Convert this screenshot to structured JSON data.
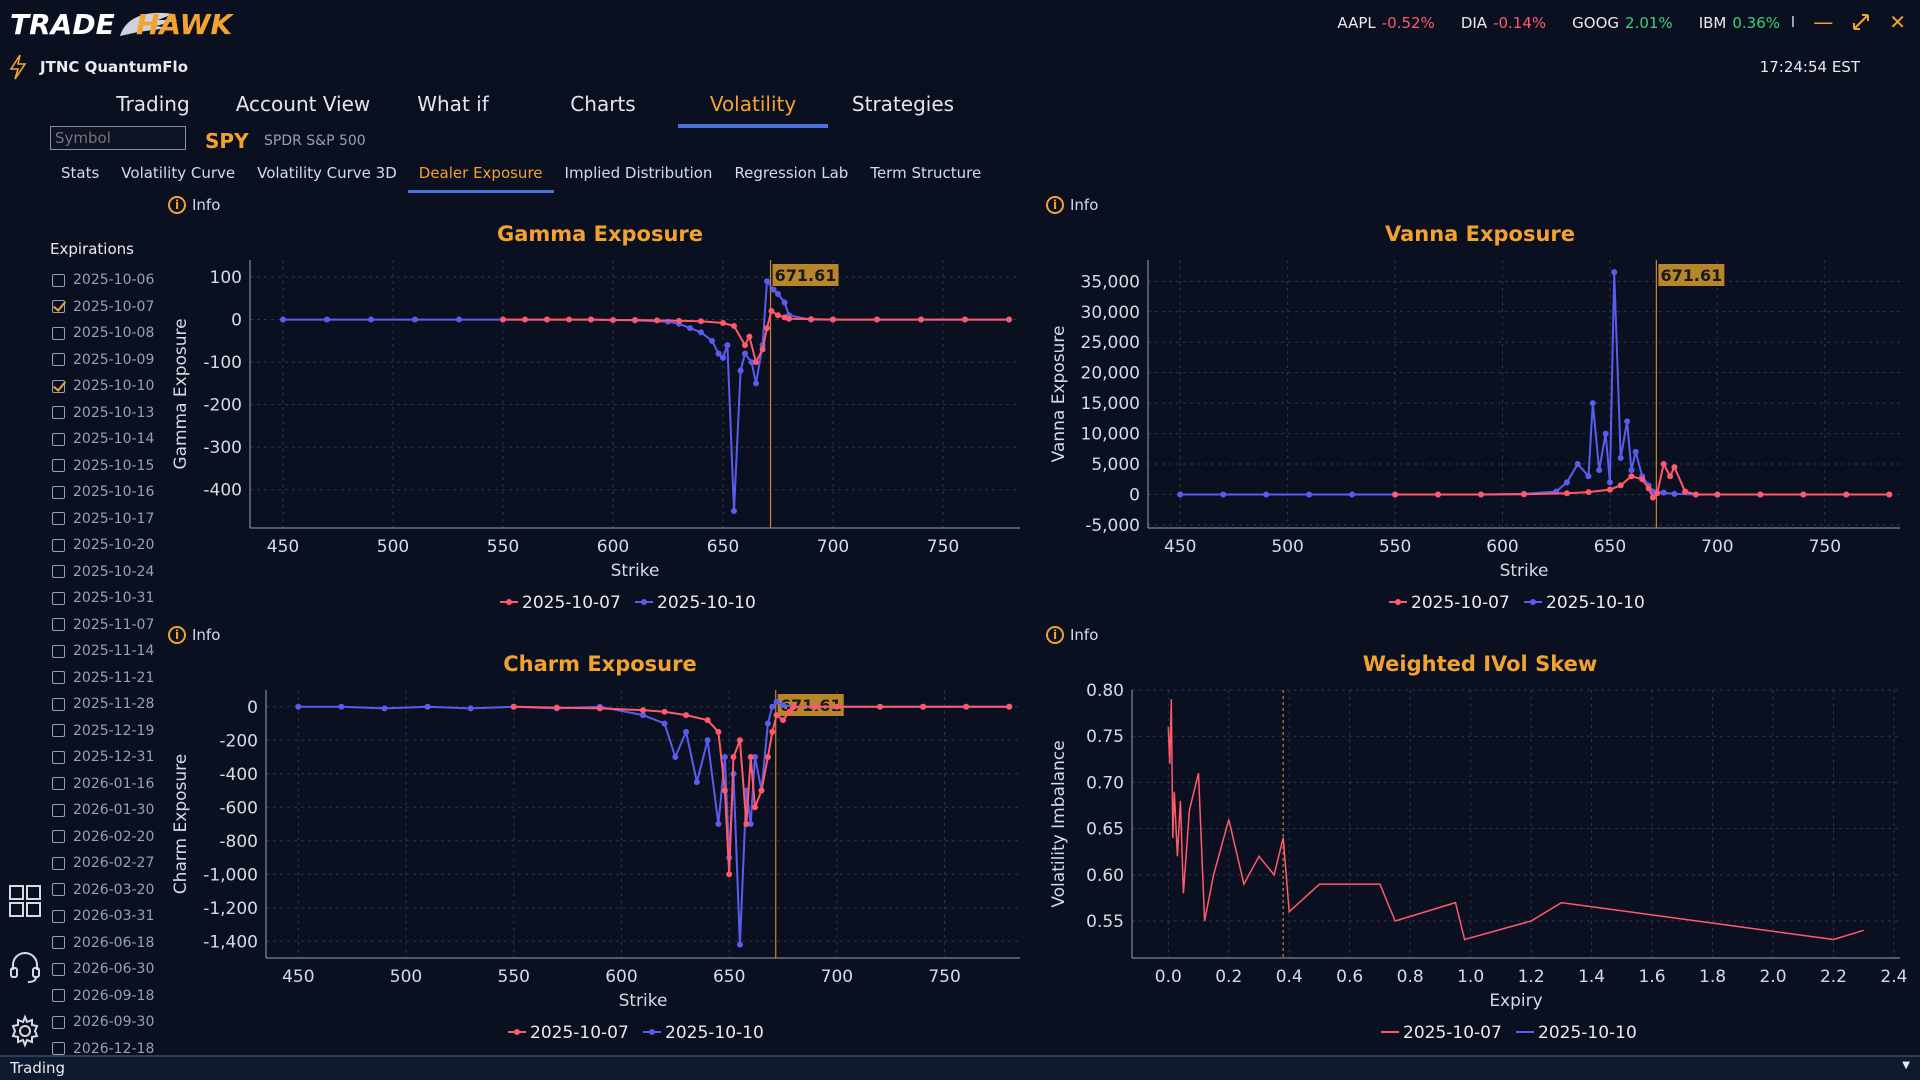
{
  "app": {
    "logo": "TRADEHAWK",
    "user": "JTNC QuantumFlo",
    "clock": "17:24:54 EST"
  },
  "tickers": [
    {
      "sym": "AAPL",
      "chg": "-0.52%",
      "dir": "neg"
    },
    {
      "sym": "DIA",
      "chg": "-0.14%",
      "dir": "neg"
    },
    {
      "sym": "GOOG",
      "chg": "2.01%",
      "dir": "pos"
    },
    {
      "sym": "IBM",
      "chg": "0.36%",
      "dir": "pos"
    }
  ],
  "window_sep": "I",
  "main_tabs": [
    "Trading",
    "Account View",
    "What if",
    "Charts",
    "Volatility",
    "Strategies"
  ],
  "main_tab_active": "Volatility",
  "symbol": {
    "placeholder": "Symbol",
    "ticker": "SPY",
    "name": "SPDR S&P 500"
  },
  "sub_tabs": [
    "Stats",
    "Volatility Curve",
    "Volatility Curve 3D",
    "Dealer Exposure",
    "Implied Distribution",
    "Regression Lab",
    "Term Structure"
  ],
  "sub_tab_active": "Dealer Exposure",
  "info_label": "Info",
  "expirations": {
    "label": "Expirations",
    "items": [
      {
        "date": "2025-10-06",
        "checked": false
      },
      {
        "date": "2025-10-07",
        "checked": true
      },
      {
        "date": "2025-10-08",
        "checked": false
      },
      {
        "date": "2025-10-09",
        "checked": false
      },
      {
        "date": "2025-10-10",
        "checked": true
      },
      {
        "date": "2025-10-13",
        "checked": false
      },
      {
        "date": "2025-10-14",
        "checked": false
      },
      {
        "date": "2025-10-15",
        "checked": false
      },
      {
        "date": "2025-10-16",
        "checked": false
      },
      {
        "date": "2025-10-17",
        "checked": false
      },
      {
        "date": "2025-10-20",
        "checked": false
      },
      {
        "date": "2025-10-24",
        "checked": false
      },
      {
        "date": "2025-10-31",
        "checked": false
      },
      {
        "date": "2025-11-07",
        "checked": false
      },
      {
        "date": "2025-11-14",
        "checked": false
      },
      {
        "date": "2025-11-21",
        "checked": false
      },
      {
        "date": "2025-11-28",
        "checked": false
      },
      {
        "date": "2025-12-19",
        "checked": false
      },
      {
        "date": "2025-12-31",
        "checked": false
      },
      {
        "date": "2026-01-16",
        "checked": false
      },
      {
        "date": "2026-01-30",
        "checked": false
      },
      {
        "date": "2026-02-20",
        "checked": false
      },
      {
        "date": "2026-02-27",
        "checked": false
      },
      {
        "date": "2026-03-20",
        "checked": false
      },
      {
        "date": "2026-03-31",
        "checked": false
      },
      {
        "date": "2026-06-18",
        "checked": false
      },
      {
        "date": "2026-06-30",
        "checked": false
      },
      {
        "date": "2026-09-18",
        "checked": false
      },
      {
        "date": "2026-09-30",
        "checked": false
      },
      {
        "date": "2026-12-18",
        "checked": false
      }
    ]
  },
  "colors": {
    "series_a": "#ff5a6a",
    "series_b": "#5a5cf0",
    "accent": "#f2a230",
    "spot_line": "#c8862a"
  },
  "status": "Trading",
  "chart_data": [
    {
      "id": "gamma",
      "type": "line",
      "title": "Gamma Exposure",
      "xlabel": "Strike",
      "ylabel": "Gamma Exposure",
      "xlim": [
        435,
        785
      ],
      "ylim": [
        -490,
        140
      ],
      "xticks": [
        450,
        500,
        550,
        600,
        650,
        700,
        750
      ],
      "yticks": [
        100,
        0,
        -100,
        -200,
        -300,
        -400
      ],
      "spot": 671.61,
      "spot_label": "671.61",
      "legend": [
        "2025-10-07",
        "2025-10-10"
      ],
      "series": [
        {
          "name": "2025-10-07",
          "x": [
            550,
            560,
            570,
            580,
            590,
            600,
            610,
            620,
            630,
            640,
            650,
            655,
            660,
            662,
            665,
            668,
            670,
            672,
            675,
            678,
            680,
            690,
            700,
            720,
            740,
            760,
            780
          ],
          "y": [
            0,
            0,
            0,
            0,
            0,
            -1,
            -1,
            -2,
            -3,
            -4,
            -8,
            -15,
            -60,
            -40,
            -100,
            -70,
            -20,
            20,
            10,
            5,
            2,
            1,
            0,
            0,
            0,
            0,
            0
          ]
        },
        {
          "name": "2025-10-10",
          "x": [
            450,
            470,
            490,
            510,
            530,
            550,
            570,
            590,
            610,
            625,
            630,
            635,
            640,
            645,
            648,
            650,
            652,
            655,
            658,
            660,
            663,
            665,
            668,
            670,
            673,
            675,
            678,
            680,
            690,
            700,
            720,
            740,
            760,
            780
          ],
          "y": [
            0,
            0,
            0,
            0,
            0,
            0,
            0,
            0,
            -2,
            -5,
            -10,
            -20,
            -30,
            -50,
            -80,
            -90,
            -60,
            -450,
            -120,
            -80,
            -100,
            -150,
            -60,
            90,
            70,
            60,
            40,
            10,
            0,
            0,
            0,
            0,
            0,
            0
          ]
        }
      ]
    },
    {
      "id": "vanna",
      "type": "line",
      "title": "Vanna Exposure",
      "xlabel": "Strike",
      "ylabel": "Vanna Exposure",
      "xlim": [
        435,
        785
      ],
      "ylim": [
        -5500,
        38500
      ],
      "xticks": [
        450,
        500,
        550,
        600,
        650,
        700,
        750
      ],
      "yticks": [
        35000,
        30000,
        25000,
        20000,
        15000,
        10000,
        5000,
        0,
        -5000
      ],
      "ytick_labels": [
        "35,000",
        "30,000",
        "25,000",
        "20,000",
        "15,000",
        "10,000",
        "5,000",
        "0",
        "-5,000"
      ],
      "spot": 671.61,
      "spot_label": "671.61",
      "legend": [
        "2025-10-07",
        "2025-10-10"
      ],
      "series": [
        {
          "name": "2025-10-07",
          "x": [
            550,
            570,
            590,
            610,
            630,
            640,
            650,
            655,
            660,
            665,
            668,
            670,
            672,
            675,
            678,
            680,
            685,
            690,
            700,
            720,
            740,
            760,
            780
          ],
          "y": [
            0,
            0,
            0,
            50,
            200,
            400,
            800,
            1500,
            3000,
            2500,
            1000,
            -500,
            200,
            5000,
            3000,
            4500,
            500,
            0,
            0,
            0,
            0,
            0,
            0
          ]
        },
        {
          "name": "2025-10-10",
          "x": [
            450,
            470,
            490,
            510,
            530,
            550,
            570,
            590,
            610,
            625,
            630,
            635,
            640,
            642,
            645,
            648,
            650,
            652,
            655,
            658,
            660,
            662,
            665,
            668,
            670,
            675,
            680,
            690,
            700,
            720,
            740,
            760,
            780
          ],
          "y": [
            0,
            0,
            0,
            0,
            0,
            0,
            0,
            0,
            100,
            500,
            2000,
            5000,
            3000,
            15000,
            4000,
            10000,
            2000,
            36500,
            6000,
            12000,
            4000,
            7000,
            3000,
            1500,
            500,
            300,
            100,
            0,
            0,
            0,
            0,
            0,
            0
          ]
        }
      ]
    },
    {
      "id": "charm",
      "type": "line",
      "title": "Charm Exposure",
      "xlabel": "Strike",
      "ylabel": "Charm Exposure",
      "xlim": [
        435,
        785
      ],
      "ylim": [
        -1500,
        100
      ],
      "xticks": [
        450,
        500,
        550,
        600,
        650,
        700,
        750
      ],
      "yticks": [
        0,
        -200,
        -400,
        -600,
        -800,
        -1000,
        -1200,
        -1400
      ],
      "ytick_labels": [
        "0",
        "-200",
        "-400",
        "-600",
        "-800",
        "-1,000",
        "-1,200",
        "-1,400"
      ],
      "spot": 671.61,
      "spot_label": "671.61",
      "legend": [
        "2025-10-07",
        "2025-10-10"
      ],
      "series": [
        {
          "name": "2025-10-07",
          "x": [
            550,
            570,
            590,
            610,
            620,
            630,
            640,
            645,
            648,
            650,
            652,
            655,
            658,
            660,
            662,
            665,
            668,
            670,
            672,
            675,
            678,
            680,
            690,
            700,
            720,
            740,
            760,
            780
          ],
          "y": [
            0,
            -5,
            -10,
            -20,
            -30,
            -50,
            -80,
            -150,
            -500,
            -1000,
            -300,
            -200,
            -700,
            -300,
            -600,
            -500,
            -300,
            -150,
            -50,
            -80,
            -30,
            0,
            0,
            0,
            0,
            0,
            0,
            0
          ]
        },
        {
          "name": "2025-10-10",
          "x": [
            450,
            470,
            490,
            510,
            530,
            550,
            570,
            590,
            610,
            620,
            625,
            630,
            635,
            640,
            645,
            648,
            650,
            652,
            655,
            658,
            660,
            662,
            665,
            668,
            670,
            672,
            675,
            680,
            690,
            700,
            720,
            740,
            760,
            780
          ],
          "y": [
            0,
            0,
            -10,
            0,
            -10,
            0,
            -10,
            0,
            -50,
            -100,
            -300,
            -150,
            -450,
            -200,
            -700,
            -300,
            -900,
            -400,
            -1420,
            -500,
            -700,
            -300,
            -500,
            -100,
            0,
            30,
            10,
            0,
            0,
            0,
            0,
            0,
            0,
            0
          ]
        }
      ]
    },
    {
      "id": "skew",
      "type": "line",
      "title": "Weighted IVol Skew",
      "xlabel": "Expiry",
      "ylabel": "Volatility Imbalance",
      "xlim": [
        -0.12,
        2.42
      ],
      "ylim": [
        0.51,
        0.8
      ],
      "xticks": [
        0.0,
        0.2,
        0.4,
        0.6,
        0.8,
        1.0,
        1.2,
        1.4,
        1.6,
        1.8,
        2.0,
        2.2,
        2.4
      ],
      "xtick_labels": [
        "0.0",
        "0.2",
        "0.4",
        "0.6",
        "0.8",
        "1.0",
        "1.2",
        "1.4",
        "1.6",
        "1.8",
        "2.0",
        "2.2",
        "2.4"
      ],
      "yticks": [
        0.8,
        0.75,
        0.7,
        0.65,
        0.6,
        0.55
      ],
      "ytick_labels": [
        "0.80",
        "0.75",
        "0.70",
        "0.65",
        "0.60",
        "0.55"
      ],
      "spot": 0.38,
      "legend": [
        "2025-10-07",
        "2025-10-10"
      ],
      "series": [
        {
          "name": "2025-10-07",
          "x": [
            0.0,
            0.005,
            0.01,
            0.015,
            0.02,
            0.03,
            0.04,
            0.05,
            0.07,
            0.1,
            0.12,
            0.15,
            0.2,
            0.25,
            0.3,
            0.35,
            0.38,
            0.4,
            0.5,
            0.7,
            0.75,
            0.95,
            0.98,
            1.2,
            1.3,
            2.2,
            2.3
          ],
          "y": [
            0.76,
            0.72,
            0.79,
            0.64,
            0.69,
            0.62,
            0.68,
            0.58,
            0.67,
            0.71,
            0.55,
            0.6,
            0.66,
            0.59,
            0.62,
            0.6,
            0.64,
            0.56,
            0.59,
            0.59,
            0.55,
            0.57,
            0.53,
            0.55,
            0.57,
            0.53,
            0.54
          ]
        }
      ]
    }
  ]
}
